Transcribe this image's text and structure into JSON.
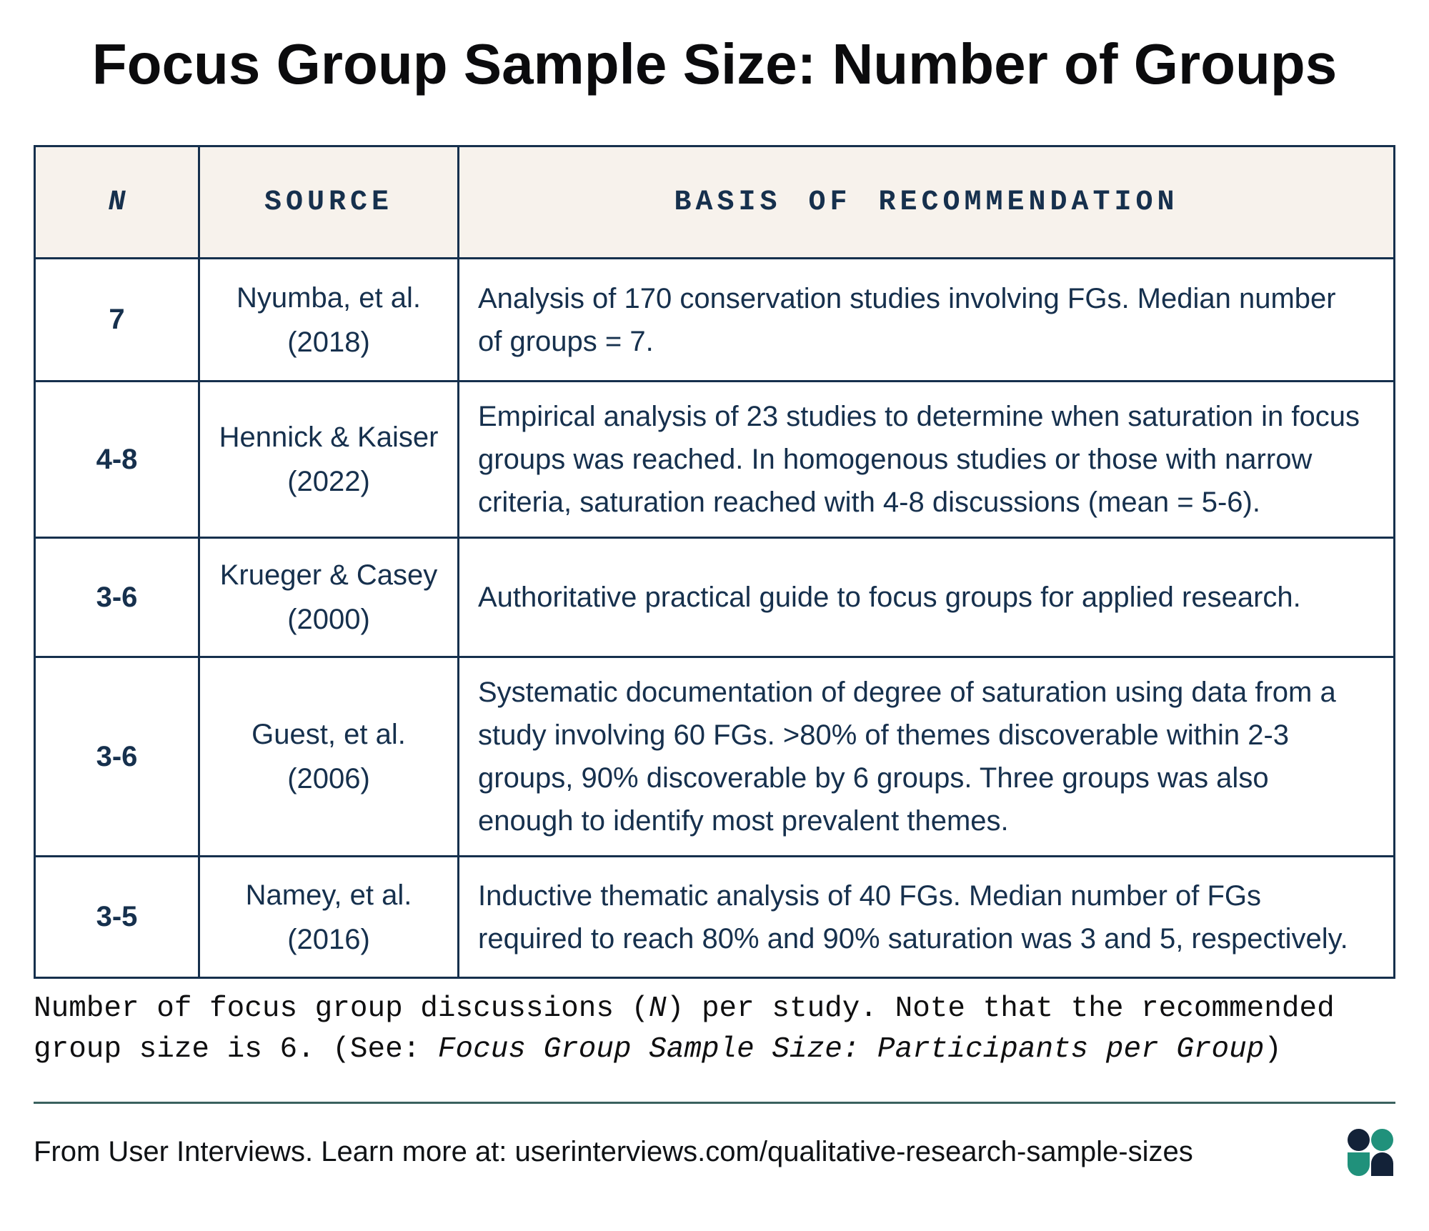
{
  "title": "Focus Group Sample Size: Number of Groups",
  "table": {
    "columns": [
      "N",
      "SOURCE",
      "BASIS OF RECOMMENDATION"
    ],
    "rows": [
      {
        "n": "7",
        "source": "Nyumba, et al. (2018)",
        "basis": "Analysis of 170 conservation studies involving FGs. Median number of groups = 7."
      },
      {
        "n": "4-8",
        "source": "Hennick & Kaiser (2022)",
        "basis": "Empirical analysis of 23 studies to determine when saturation in focus groups was reached. In homogenous studies or those with narrow criteria, saturation reached with 4-8 discussions (mean = 5-6)."
      },
      {
        "n": "3-6",
        "source": "Krueger & Casey (2000)",
        "basis": "Authoritative practical guide to focus groups for applied research."
      },
      {
        "n": "3-6",
        "source": "Guest, et al. (2006)",
        "basis": "Systematic documentation of degree of saturation using data from a study involving 60 FGs. >80% of themes discoverable within 2-3 groups, 90% discoverable by 6 groups. Three groups was also enough to identify most prevalent themes."
      },
      {
        "n": "3-5",
        "source": "Namey, et al. (2016)",
        "basis": "Inductive thematic analysis of 40 FGs. Median number of FGs required to reach 80% and 90% saturation was 3 and 5, respectively."
      }
    ]
  },
  "caption": {
    "part1": "Number of focus group discussions (",
    "part2_italic": "N",
    "part3": ") per study. Note that the recommended group size is 6. (See: ",
    "part4_italic": "Focus Group Sample Size: Participants per Group",
    "part5": ")"
  },
  "footer": {
    "text": "From User Interviews. Learn more at: userinterviews.com/qualitative-research-sample-sizes"
  },
  "colors": {
    "navy": "#16304d",
    "header_bg": "#f7f2ec",
    "divider_teal": "#3a615e",
    "logo_navy": "#132238",
    "logo_teal": "#20917b",
    "ink": "#0b0b0d"
  }
}
